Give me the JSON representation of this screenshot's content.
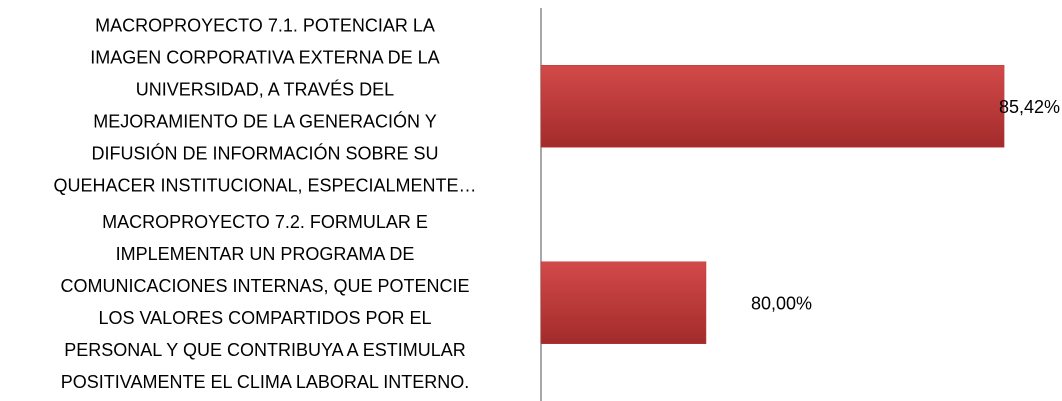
{
  "chart_data": {
    "type": "hbar",
    "categories": [
      "MACROPROYECTO 7.1. POTENCIAR LA\nIMAGEN CORPORATIVA EXTERNA DE LA\nUNIVERSIDAD,  A  TRAVÉS DEL\nMEJORAMIENTO DE LA GENERACIÓN Y\nDIFUSIÓN DE INFORMACIÓN SOBRE SU\nQUEHACER INSTITUCIONAL, ESPECIALMENTE…",
      "MACROPROYECTO 7.2. FORMULAR E\nIMPLEMENTAR UN PROGRAMA DE\nCOMUNICACIONES INTERNAS, QUE POTENCIE\nLOS VALORES COMPARTIDOS POR EL\nPERSONAL  Y QUE CONTRIBUYA A ESTIMULAR\nPOSITIVAMENTE EL CLIMA LABORAL INTERNO."
    ],
    "values": [
      85.42,
      80
    ],
    "value_labels": [
      "85,42%",
      "80,00%"
    ],
    "color": "#c0393a",
    "xlim": [
      77,
      86.4
    ]
  }
}
